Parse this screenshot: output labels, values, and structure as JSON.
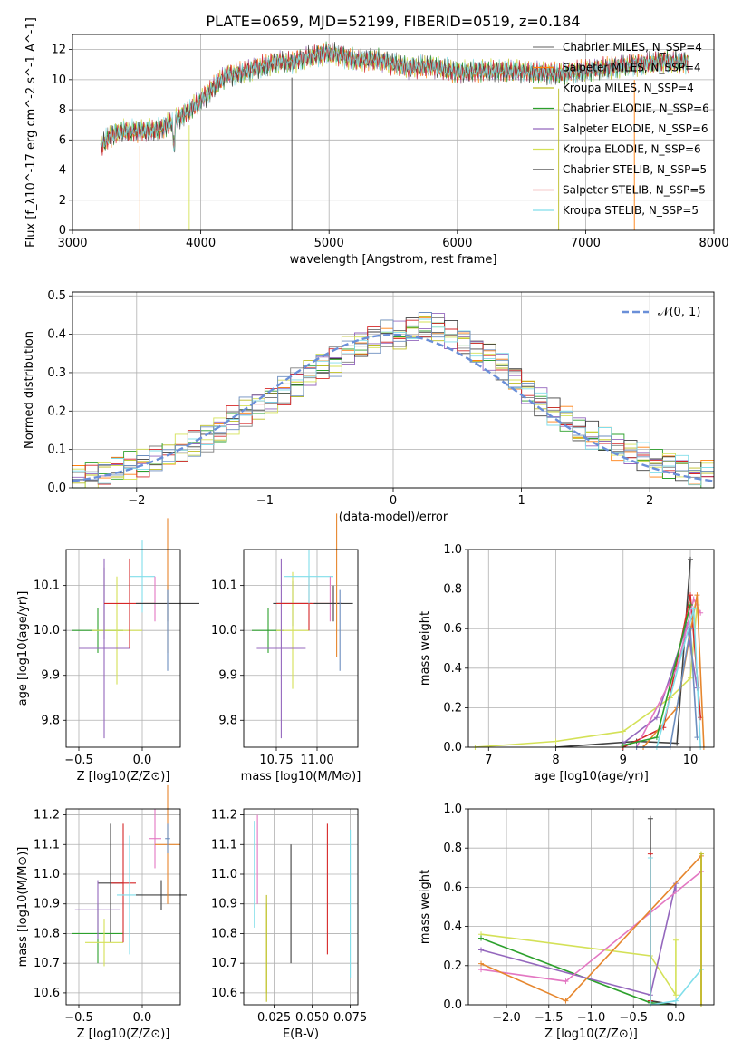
{
  "figure": {
    "title": "PLATE=0659, MJD=52199, FIBERID=0519, z=0.184"
  },
  "colors": {
    "Chabrier MILES": "#7f7f7f",
    "Salpeter MILES": "#ff7f0e",
    "Kroupa MILES": "#bcbd22",
    "Chabrier ELODIE": "#2ca02c",
    "Salpeter ELODIE": "#9467bd",
    "Kroupa ELODIE": "#d4e157",
    "Chabrier STELIB": "#404040",
    "Salpeter STELIB": "#d62728",
    "Kroupa STELIB": "#80deea",
    "gauss": "#6a8fd8",
    "pink": "#e377c2",
    "orange": "#e6862d",
    "blue": "#6c8ebf"
  },
  "chart_data": [
    {
      "id": "spectrum",
      "type": "line",
      "xlabel": "wavelength [Angstrom, rest frame]",
      "ylabel": "Flux [f_λ10^-17 erg cm^-2 s^-1 A^-1]",
      "xlim": [
        3000,
        8000
      ],
      "ylim": [
        0,
        13
      ],
      "xticks": [
        "3000",
        "4000",
        "5000",
        "6000",
        "7000",
        "8000"
      ],
      "yticks": [
        "0",
        "2",
        "4",
        "6",
        "8",
        "10",
        "12"
      ],
      "legend": [
        "Chabrier MILES, N_SSP=4",
        "Salpeter MILES, N_SSP=4",
        "Kroupa MILES, N_SSP=4",
        "Chabrier ELODIE, N_SSP=6",
        "Salpeter ELODIE, N_SSP=6",
        "Kroupa ELODIE, N_SSP=6",
        "Chabrier STELIB, N_SSP=5",
        "Salpeter STELIB, N_SSP=5",
        "Kroupa STELIB, N_SSP=5"
      ],
      "legend_position": "right",
      "x": [
        3220,
        3300,
        3400,
        3500,
        3600,
        3700,
        3800,
        3900,
        4000,
        4100,
        4200,
        4300,
        4400,
        4500,
        4600,
        4700,
        4800,
        4900,
        5000,
        5200,
        5400,
        5600,
        5800,
        6000,
        6200,
        6400,
        6600,
        6800,
        7000,
        7200,
        7400,
        7600,
        7800
      ],
      "y": [
        5.6,
        6.3,
        6.6,
        6.6,
        6.6,
        6.8,
        7.3,
        7.9,
        8.6,
        9.5,
        10.3,
        10.4,
        10.7,
        10.9,
        11.2,
        11.1,
        11.4,
        11.6,
        11.8,
        11.3,
        11.3,
        10.8,
        10.9,
        10.5,
        10.6,
        10.6,
        10.5,
        10.4,
        10.6,
        10.8,
        11.0,
        11.2,
        11.1
      ]
    },
    {
      "id": "residuals",
      "type": "line",
      "xlabel": "(data-model)/error",
      "ylabel": "Normed distribution",
      "xlim": [
        -2.5,
        2.5
      ],
      "ylim": [
        0,
        0.51
      ],
      "xticks": [
        "−2",
        "−1",
        "0",
        "1",
        "2"
      ],
      "yticks": [
        "0.0",
        "0.1",
        "0.2",
        "0.3",
        "0.4",
        "0.5"
      ],
      "legend": [
        "𝒩(0, 1)"
      ],
      "legend_position": "top-right",
      "hist_x": [
        -2.5,
        -2.4,
        -2.3,
        -2.2,
        -2.1,
        -2.0,
        -1.9,
        -1.8,
        -1.7,
        -1.6,
        -1.5,
        -1.4,
        -1.3,
        -1.2,
        -1.1,
        -1.0,
        -0.9,
        -0.8,
        -0.7,
        -0.6,
        -0.5,
        -0.4,
        -0.3,
        -0.2,
        -0.1,
        0.0,
        0.1,
        0.2,
        0.3,
        0.4,
        0.5,
        0.6,
        0.7,
        0.8,
        0.9,
        1.0,
        1.1,
        1.2,
        1.3,
        1.4,
        1.5,
        1.6,
        1.7,
        1.8,
        1.9,
        2.0,
        2.1,
        2.2,
        2.3,
        2.4
      ],
      "hist_y": [
        0.025,
        0.032,
        0.04,
        0.05,
        0.058,
        0.064,
        0.072,
        0.085,
        0.1,
        0.112,
        0.13,
        0.15,
        0.175,
        0.2,
        0.215,
        0.23,
        0.255,
        0.275,
        0.3,
        0.32,
        0.33,
        0.355,
        0.37,
        0.385,
        0.4,
        0.395,
        0.41,
        0.42,
        0.42,
        0.4,
        0.38,
        0.36,
        0.345,
        0.32,
        0.29,
        0.25,
        0.225,
        0.2,
        0.175,
        0.15,
        0.135,
        0.12,
        0.105,
        0.09,
        0.078,
        0.068,
        0.06,
        0.052,
        0.045,
        0.038
      ]
    },
    {
      "id": "age-vs-Z",
      "type": "scatter",
      "xlabel": "Z [log10(Z/Z⊙)]",
      "ylabel": "age  [log10(age/yr)]",
      "xlim": [
        -0.6,
        0.3
      ],
      "ylim": [
        9.74,
        10.18
      ],
      "xticks": [
        "−0.5",
        "0.0"
      ],
      "yticks": [
        "9.8",
        "9.9",
        "10.0",
        "10.1"
      ],
      "points": [
        {
          "x": -0.3,
          "y": 10.06,
          "xerr": 0.0,
          "yerr": 0.08,
          "c": "Chabrier STELIB"
        },
        {
          "x": -0.35,
          "y": 10.0,
          "xerr": 0.2,
          "yerr": 0.05,
          "c": "Chabrier ELODIE"
        },
        {
          "x": -0.2,
          "y": 10.0,
          "xerr": 0.2,
          "yerr": 0.12,
          "c": "Kroupa ELODIE"
        },
        {
          "x": -0.3,
          "y": 9.96,
          "xerr": 0.2,
          "yerr": 0.2,
          "c": "Salpeter ELODIE"
        },
        {
          "x": -0.1,
          "y": 10.06,
          "xerr": 0.2,
          "yerr": 0.1,
          "c": "Salpeter STELIB"
        },
        {
          "x": 0.0,
          "y": 10.12,
          "xerr": 0.1,
          "yerr": 0.08,
          "c": "Kroupa STELIB"
        },
        {
          "x": 0.1,
          "y": 10.07,
          "xerr": 0.1,
          "yerr": 0.05,
          "c": "pink"
        },
        {
          "x": 0.2,
          "y": 10.06,
          "xerr": 0.25,
          "yerr": 0.04,
          "c": "Chabrier STELIB"
        },
        {
          "x": 0.2,
          "y": 10.1,
          "xerr": 0.0,
          "yerr": 0.15,
          "c": "orange"
        },
        {
          "x": 0.2,
          "y": 10.0,
          "xerr": 0.0,
          "yerr": 0.09,
          "c": "blue"
        }
      ]
    },
    {
      "id": "age-vs-mass",
      "type": "scatter",
      "xlabel": "mass [log10(M/M⊙)]",
      "ylabel": "",
      "xlim": [
        10.55,
        11.25
      ],
      "ylim": [
        9.74,
        10.18
      ],
      "xticks": [
        "10.75",
        "11.00"
      ],
      "yticks": [
        "9.8",
        "9.9",
        "10.0",
        "10.1"
      ]
    },
    {
      "id": "mass-weight-vs-age",
      "type": "line",
      "xlabel": "age  [log10(age/yr)]",
      "ylabel": "mass weight",
      "xlim": [
        6.7,
        10.35
      ],
      "ylim": [
        0.0,
        1.0
      ],
      "xticks": [
        "7",
        "8",
        "9",
        "10"
      ],
      "yticks": [
        "0.0",
        "0.2",
        "0.4",
        "0.6",
        "0.8",
        "1.0"
      ]
    },
    {
      "id": "mass-vs-Z",
      "type": "scatter",
      "xlabel": "Z [log10(Z/Z⊙)]",
      "ylabel": "mass [log10(M/M⊙)]",
      "xlim": [
        -0.6,
        0.3
      ],
      "ylim": [
        10.56,
        11.22
      ],
      "xticks": [
        "−0.5",
        "0.0"
      ],
      "yticks": [
        "10.6",
        "10.7",
        "10.8",
        "10.9",
        "11.0",
        "11.1",
        "11.2"
      ]
    },
    {
      "id": "mass-vs-EBV",
      "type": "scatter",
      "xlabel": "E(B-V)",
      "ylabel": "",
      "xlim": [
        0.005,
        0.08
      ],
      "ylim": [
        10.56,
        11.22
      ],
      "xticks": [
        "0.025",
        "0.050",
        "0.075"
      ],
      "yticks": [
        "10.6",
        "10.7",
        "10.8",
        "10.9",
        "11.0",
        "11.1",
        "11.2"
      ]
    },
    {
      "id": "mass-weight-vs-Z",
      "type": "line",
      "xlabel": "Z [log10(Z/Z⊙)]",
      "ylabel": "mass weight",
      "xlim": [
        -2.45,
        0.45
      ],
      "ylim": [
        0.0,
        1.0
      ],
      "xticks": [
        "−2.0",
        "−1.5",
        "−1.0",
        "−0.5",
        "0.0"
      ],
      "yticks": [
        "0.0",
        "0.2",
        "0.4",
        "0.6",
        "0.8",
        "1.0"
      ]
    }
  ]
}
